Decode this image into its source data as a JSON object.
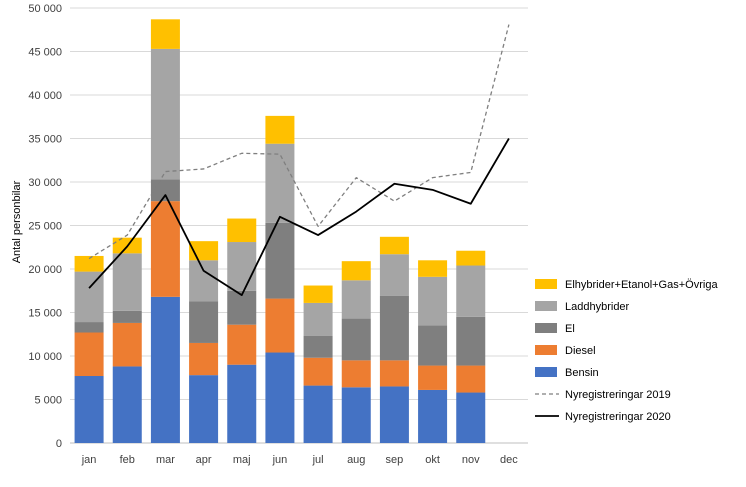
{
  "chart_data": {
    "type": "bar",
    "stacked": true,
    "categories": [
      "jan",
      "feb",
      "mar",
      "apr",
      "maj",
      "jun",
      "jul",
      "aug",
      "sep",
      "okt",
      "nov",
      "dec"
    ],
    "ylabel": "Antal personbilar",
    "ylim": [
      0,
      50000
    ],
    "yticks": [
      "0",
      "5 000",
      "10 000",
      "15 000",
      "20 000",
      "25 000",
      "30 000",
      "35 000",
      "40 000",
      "45 000",
      "50 000"
    ],
    "ytick_values": [
      0,
      5000,
      10000,
      15000,
      20000,
      25000,
      30000,
      35000,
      40000,
      45000,
      50000
    ],
    "gridlines": true,
    "legend_position": "right",
    "series": [
      {
        "name": "Bensin",
        "color": "#4472C4",
        "values": [
          7700,
          8800,
          16800,
          7800,
          9000,
          10400,
          6600,
          6400,
          6500,
          6100,
          5800,
          null
        ]
      },
      {
        "name": "Diesel",
        "color": "#ED7D31",
        "values": [
          5000,
          5000,
          11000,
          3700,
          4600,
          6200,
          3200,
          3100,
          3000,
          2800,
          3100,
          null
        ]
      },
      {
        "name": "El",
        "color": "#7F7F7F",
        "values": [
          1200,
          1400,
          2500,
          4800,
          3900,
          8700,
          2500,
          4800,
          7400,
          4600,
          5600,
          null
        ]
      },
      {
        "name": "Laddhybrider",
        "color": "#A5A5A5",
        "values": [
          5800,
          6600,
          15000,
          4700,
          5600,
          9100,
          3800,
          4400,
          4800,
          5600,
          5900,
          null
        ]
      },
      {
        "name": "Elhybrider+Etanol+Gas+Övriga",
        "color": "#FFC000",
        "values": [
          1800,
          1800,
          3400,
          2200,
          2700,
          3200,
          2000,
          2200,
          2000,
          1900,
          1700,
          null
        ]
      }
    ],
    "lines": [
      {
        "name": "Nyregistreringar 2019",
        "color": "#7F7F7F",
        "dash": true,
        "values": [
          21200,
          23900,
          31200,
          31500,
          33300,
          33200,
          24900,
          30500,
          27800,
          30500,
          31100,
          48100
        ]
      },
      {
        "name": "Nyregistreringar 2020",
        "color": "#000000",
        "dash": false,
        "values": [
          17800,
          22600,
          28500,
          19800,
          17000,
          26000,
          23900,
          26600,
          29800,
          29100,
          27500,
          35000
        ]
      }
    ],
    "legend": [
      {
        "name": "Elhybrider+Etanol+Gas+Övriga",
        "kind": "box",
        "color": "#FFC000"
      },
      {
        "name": "Laddhybrider",
        "kind": "box",
        "color": "#A5A5A5"
      },
      {
        "name": "El",
        "kind": "box",
        "color": "#7F7F7F"
      },
      {
        "name": "Diesel",
        "kind": "box",
        "color": "#ED7D31"
      },
      {
        "name": "Bensin",
        "kind": "box",
        "color": "#4472C4"
      },
      {
        "name": "Nyregistreringar 2019",
        "kind": "dash",
        "color": "#7F7F7F"
      },
      {
        "name": "Nyregistreringar 2020",
        "kind": "line",
        "color": "#000000"
      }
    ]
  }
}
